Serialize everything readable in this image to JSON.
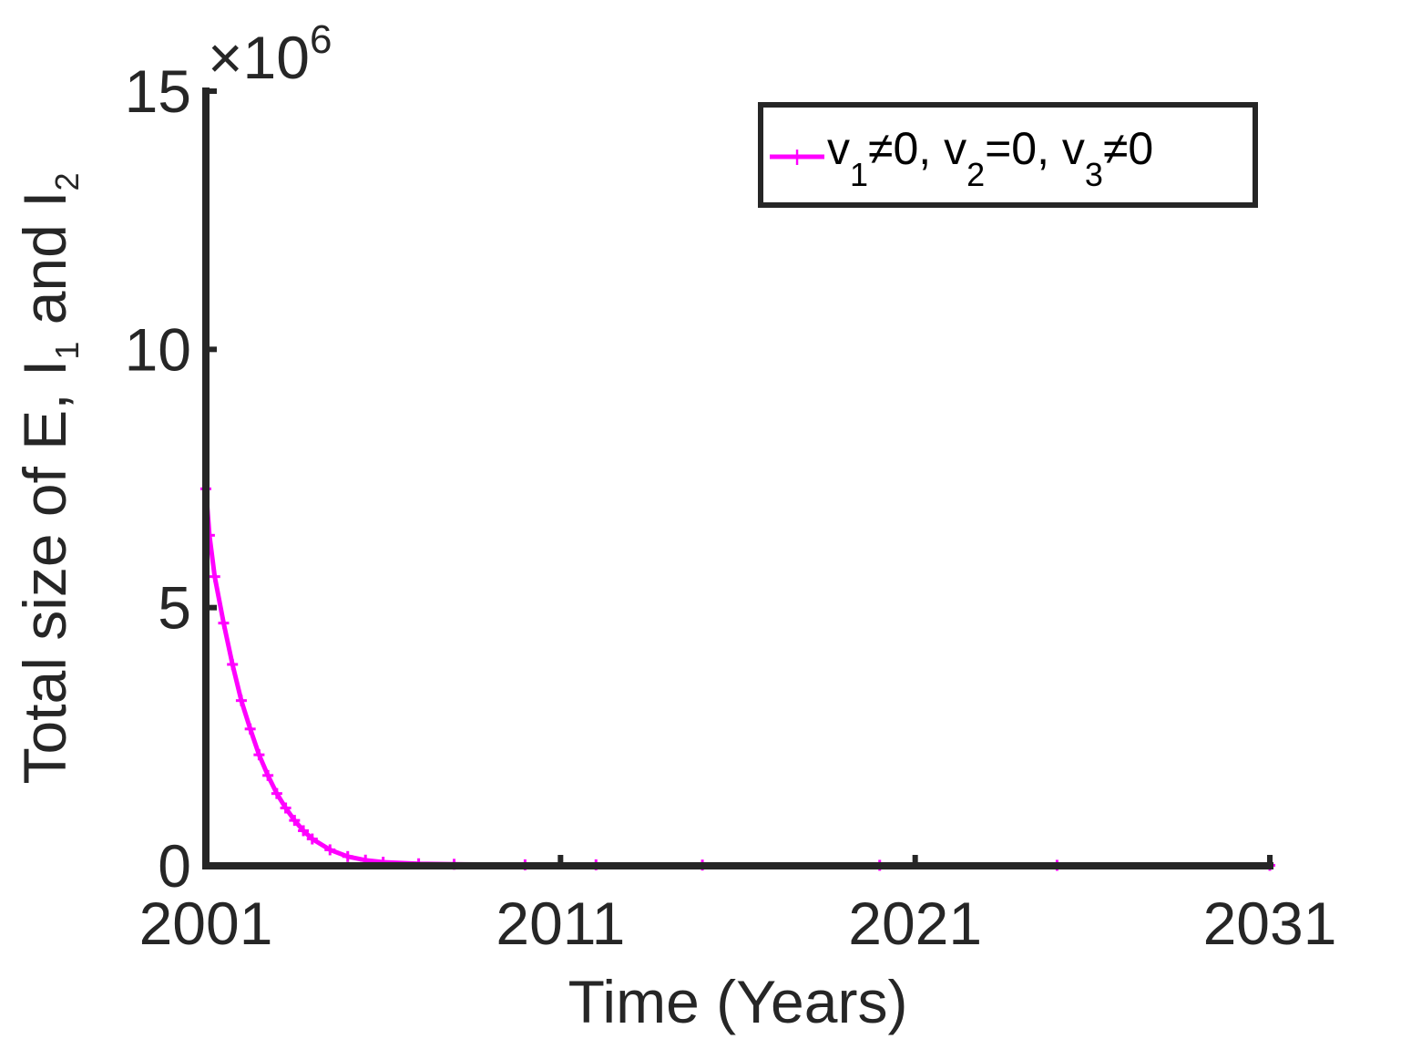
{
  "chart_data": {
    "type": "line",
    "title": "",
    "xlabel": "Time (Years)",
    "ylabel": {
      "parts": [
        "Total size of E, I",
        "1",
        " and I",
        "2"
      ]
    },
    "y_multiplier": {
      "prefix": "×10",
      "exponent": "6"
    },
    "xlim": [
      2001,
      2031
    ],
    "ylim": [
      0,
      15
    ],
    "xticks": [
      2001,
      2011,
      2021,
      2031
    ],
    "xtick_labels": [
      "2001",
      "2011",
      "2021",
      "2031"
    ],
    "yticks": [
      0,
      5,
      10,
      15
    ],
    "ytick_labels": [
      "0",
      "5",
      "10",
      "15"
    ],
    "grid": false,
    "legend_position": "top-right",
    "series": [
      {
        "name": {
          "parts": [
            "v",
            "1",
            "≠0, v",
            "2",
            "=0, v",
            "3",
            "≠0"
          ]
        },
        "color": "#ff00ff",
        "marker": "+",
        "x": [
          2001.0,
          2001.1,
          2001.25,
          2001.5,
          2001.75,
          2002.0,
          2002.25,
          2002.5,
          2002.75,
          2003.0,
          2003.25,
          2003.5,
          2003.75,
          2004.0,
          2004.5,
          2005.0,
          2005.5,
          2006.0,
          2007.0,
          2008.0,
          2010.0,
          2012.0,
          2015.0,
          2020.0,
          2025.0,
          2031.0
        ],
        "y": [
          7.3,
          6.4,
          5.6,
          4.7,
          3.9,
          3.2,
          2.65,
          2.15,
          1.75,
          1.4,
          1.12,
          0.88,
          0.68,
          0.52,
          0.31,
          0.18,
          0.11,
          0.07,
          0.04,
          0.03,
          0.02,
          0.02,
          0.015,
          0.01,
          0.01,
          0.01
        ]
      }
    ]
  }
}
